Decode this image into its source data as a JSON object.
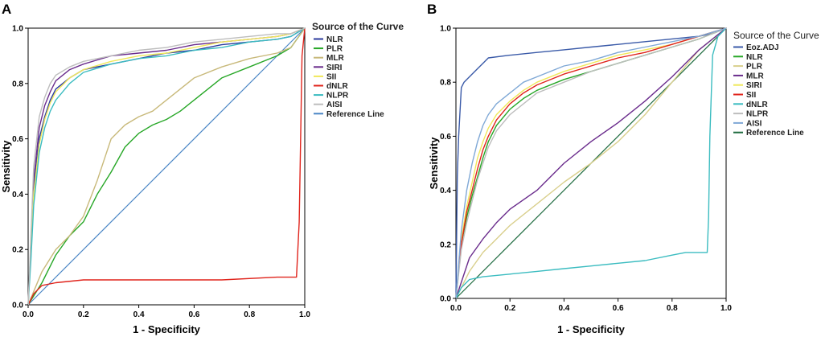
{
  "chart_data": [
    {
      "type": "line",
      "panel": "A",
      "title": "",
      "xlabel": "1 - Specificity",
      "ylabel": "Sensitivity",
      "xlim": [
        0,
        1
      ],
      "ylim": [
        0,
        1
      ],
      "xticks": [
        "0.0",
        "0.2",
        "0.4",
        "0.6",
        "0.8",
        "1.0"
      ],
      "yticks": [
        "0.0",
        "0.2",
        "0.4",
        "0.6",
        "0.8",
        "1.0"
      ],
      "legend_title": "Source of the Curve",
      "legend_position": "right",
      "series": [
        {
          "name": "NLR",
          "color": "#2b3a9e",
          "x": [
            0,
            0.01,
            0.02,
            0.04,
            0.06,
            0.08,
            0.1,
            0.15,
            0.2,
            0.3,
            0.4,
            0.5,
            0.6,
            0.7,
            0.8,
            0.9,
            0.95,
            1.0
          ],
          "y": [
            0,
            0.2,
            0.42,
            0.6,
            0.68,
            0.74,
            0.78,
            0.82,
            0.85,
            0.87,
            0.89,
            0.91,
            0.92,
            0.94,
            0.95,
            0.96,
            0.97,
            1.0
          ]
        },
        {
          "name": "PLR",
          "color": "#27a727",
          "x": [
            0,
            0.05,
            0.1,
            0.15,
            0.2,
            0.25,
            0.3,
            0.35,
            0.4,
            0.45,
            0.5,
            0.55,
            0.6,
            0.65,
            0.7,
            0.8,
            0.9,
            0.95,
            1.0
          ],
          "y": [
            0,
            0.08,
            0.18,
            0.25,
            0.3,
            0.4,
            0.48,
            0.57,
            0.62,
            0.65,
            0.67,
            0.7,
            0.74,
            0.78,
            0.82,
            0.86,
            0.9,
            0.93,
            1.0
          ]
        },
        {
          "name": "MLR",
          "color": "#c8b97a",
          "x": [
            0,
            0.05,
            0.1,
            0.15,
            0.2,
            0.25,
            0.3,
            0.35,
            0.4,
            0.45,
            0.5,
            0.55,
            0.6,
            0.7,
            0.8,
            0.9,
            0.95,
            1.0
          ],
          "y": [
            0,
            0.12,
            0.2,
            0.25,
            0.32,
            0.45,
            0.6,
            0.65,
            0.68,
            0.7,
            0.74,
            0.78,
            0.82,
            0.86,
            0.89,
            0.91,
            0.93,
            1.0
          ]
        },
        {
          "name": "SIRI",
          "color": "#6a2c8c",
          "x": [
            0,
            0.01,
            0.02,
            0.04,
            0.06,
            0.08,
            0.1,
            0.15,
            0.2,
            0.3,
            0.4,
            0.5,
            0.6,
            0.7,
            0.8,
            0.9,
            0.95,
            1.0
          ],
          "y": [
            0,
            0.22,
            0.45,
            0.64,
            0.72,
            0.77,
            0.81,
            0.85,
            0.87,
            0.9,
            0.91,
            0.92,
            0.94,
            0.95,
            0.96,
            0.97,
            0.98,
            1.0
          ]
        },
        {
          "name": "SII",
          "color": "#f0e85a",
          "x": [
            0,
            0.01,
            0.02,
            0.04,
            0.06,
            0.08,
            0.1,
            0.15,
            0.2,
            0.3,
            0.4,
            0.5,
            0.6,
            0.7,
            0.8,
            0.9,
            0.95,
            1.0
          ],
          "y": [
            0,
            0.19,
            0.4,
            0.58,
            0.67,
            0.73,
            0.77,
            0.82,
            0.85,
            0.88,
            0.9,
            0.91,
            0.93,
            0.95,
            0.96,
            0.97,
            0.98,
            1.0
          ]
        },
        {
          "name": "dNLR",
          "color": "#e0241c",
          "x": [
            0,
            0.02,
            0.05,
            0.1,
            0.2,
            0.3,
            0.5,
            0.7,
            0.9,
            0.97,
            0.98,
            0.99,
            1.0
          ],
          "y": [
            0,
            0.04,
            0.07,
            0.08,
            0.09,
            0.09,
            0.09,
            0.09,
            0.1,
            0.1,
            0.3,
            0.9,
            1.0
          ]
        },
        {
          "name": "NLPR",
          "color": "#3bbcc0",
          "x": [
            0,
            0.01,
            0.02,
            0.04,
            0.06,
            0.08,
            0.1,
            0.15,
            0.2,
            0.3,
            0.4,
            0.5,
            0.6,
            0.7,
            0.8,
            0.9,
            0.95,
            1.0
          ],
          "y": [
            0,
            0.16,
            0.36,
            0.55,
            0.64,
            0.7,
            0.74,
            0.8,
            0.84,
            0.87,
            0.89,
            0.9,
            0.92,
            0.93,
            0.95,
            0.96,
            0.97,
            1.0
          ]
        },
        {
          "name": "AISI",
          "color": "#bdbdbd",
          "x": [
            0,
            0.01,
            0.02,
            0.04,
            0.06,
            0.08,
            0.1,
            0.15,
            0.2,
            0.3,
            0.4,
            0.5,
            0.6,
            0.7,
            0.8,
            0.9,
            0.95,
            1.0
          ],
          "y": [
            0,
            0.25,
            0.5,
            0.68,
            0.75,
            0.8,
            0.83,
            0.86,
            0.88,
            0.9,
            0.92,
            0.93,
            0.95,
            0.96,
            0.97,
            0.98,
            0.98,
            1.0
          ]
        },
        {
          "name": "Reference Line",
          "color": "#4a86c5",
          "x": [
            0,
            1
          ],
          "y": [
            0,
            1
          ]
        }
      ]
    },
    {
      "type": "line",
      "panel": "B",
      "title": "",
      "xlabel": "1 - Specificity",
      "ylabel": "Sensitivity",
      "xlim": [
        0,
        1
      ],
      "ylim": [
        0,
        1
      ],
      "xticks": [
        "0.0",
        "0.2",
        "0.4",
        "0.6",
        "0.8",
        "1.0"
      ],
      "yticks": [
        "0.0",
        "0.2",
        "0.4",
        "0.6",
        "0.8",
        "1.0"
      ],
      "legend_title": "Source of the Curve",
      "legend_position": "right",
      "series": [
        {
          "name": "Eoz.ADJ",
          "color": "#3a5aa8",
          "x": [
            0,
            0.005,
            0.01,
            0.02,
            0.03,
            0.05,
            0.08,
            0.1,
            0.12,
            0.2,
            0.3,
            0.4,
            0.5,
            0.6,
            0.7,
            0.8,
            0.9,
            0.95,
            1.0
          ],
          "y": [
            0,
            0.45,
            0.6,
            0.78,
            0.8,
            0.82,
            0.85,
            0.87,
            0.89,
            0.9,
            0.91,
            0.92,
            0.93,
            0.94,
            0.95,
            0.96,
            0.97,
            0.98,
            1.0
          ]
        },
        {
          "name": "NLR",
          "color": "#27a727",
          "x": [
            0,
            0.02,
            0.04,
            0.06,
            0.08,
            0.1,
            0.12,
            0.15,
            0.2,
            0.25,
            0.3,
            0.4,
            0.5,
            0.6,
            0.7,
            0.8,
            0.9,
            1.0
          ],
          "y": [
            0,
            0.2,
            0.3,
            0.38,
            0.45,
            0.52,
            0.58,
            0.64,
            0.7,
            0.74,
            0.77,
            0.81,
            0.84,
            0.87,
            0.9,
            0.93,
            0.96,
            1.0
          ]
        },
        {
          "name": "PLR",
          "color": "#d9cf8c",
          "x": [
            0,
            0.05,
            0.1,
            0.15,
            0.2,
            0.3,
            0.4,
            0.5,
            0.6,
            0.7,
            0.8,
            0.9,
            1.0
          ],
          "y": [
            0,
            0.1,
            0.17,
            0.22,
            0.27,
            0.35,
            0.43,
            0.5,
            0.58,
            0.68,
            0.8,
            0.92,
            1.0
          ]
        },
        {
          "name": "MLR",
          "color": "#6a2c8c",
          "x": [
            0,
            0.05,
            0.1,
            0.15,
            0.2,
            0.3,
            0.4,
            0.5,
            0.6,
            0.7,
            0.8,
            0.9,
            1.0
          ],
          "y": [
            0,
            0.15,
            0.22,
            0.28,
            0.33,
            0.4,
            0.5,
            0.58,
            0.65,
            0.73,
            0.82,
            0.92,
            1.0
          ]
        },
        {
          "name": "SIRI",
          "color": "#f0e85a",
          "x": [
            0,
            0.02,
            0.04,
            0.06,
            0.08,
            0.1,
            0.12,
            0.15,
            0.2,
            0.25,
            0.3,
            0.4,
            0.5,
            0.6,
            0.7,
            0.8,
            0.9,
            1.0
          ],
          "y": [
            0,
            0.22,
            0.34,
            0.43,
            0.52,
            0.58,
            0.63,
            0.68,
            0.73,
            0.77,
            0.8,
            0.84,
            0.87,
            0.9,
            0.92,
            0.94,
            0.97,
            1.0
          ]
        },
        {
          "name": "SII",
          "color": "#e0241c",
          "x": [
            0,
            0.02,
            0.04,
            0.06,
            0.08,
            0.1,
            0.12,
            0.15,
            0.2,
            0.25,
            0.3,
            0.4,
            0.5,
            0.6,
            0.7,
            0.8,
            0.9,
            1.0
          ],
          "y": [
            0,
            0.2,
            0.32,
            0.4,
            0.48,
            0.55,
            0.6,
            0.66,
            0.72,
            0.76,
            0.79,
            0.83,
            0.86,
            0.89,
            0.91,
            0.94,
            0.97,
            1.0
          ]
        },
        {
          "name": "dNLR",
          "color": "#3bbcc0",
          "x": [
            0,
            0.02,
            0.05,
            0.1,
            0.2,
            0.3,
            0.4,
            0.5,
            0.6,
            0.7,
            0.8,
            0.85,
            0.9,
            0.93,
            0.935,
            0.94,
            0.95,
            0.97,
            1.0
          ],
          "y": [
            0,
            0.04,
            0.07,
            0.08,
            0.09,
            0.1,
            0.11,
            0.12,
            0.13,
            0.14,
            0.16,
            0.17,
            0.17,
            0.17,
            0.3,
            0.6,
            0.9,
            0.97,
            1.0
          ]
        },
        {
          "name": "NLPR",
          "color": "#bdbdbd",
          "x": [
            0,
            0.02,
            0.04,
            0.06,
            0.08,
            0.1,
            0.12,
            0.15,
            0.2,
            0.25,
            0.3,
            0.4,
            0.5,
            0.6,
            0.7,
            0.8,
            0.9,
            1.0
          ],
          "y": [
            0,
            0.18,
            0.28,
            0.36,
            0.44,
            0.5,
            0.56,
            0.62,
            0.68,
            0.72,
            0.76,
            0.8,
            0.84,
            0.87,
            0.9,
            0.93,
            0.96,
            1.0
          ]
        },
        {
          "name": "AISI",
          "color": "#7fa8d6",
          "x": [
            0,
            0.02,
            0.04,
            0.06,
            0.08,
            0.1,
            0.12,
            0.15,
            0.2,
            0.25,
            0.3,
            0.4,
            0.5,
            0.6,
            0.7,
            0.8,
            0.9,
            1.0
          ],
          "y": [
            0,
            0.25,
            0.4,
            0.5,
            0.58,
            0.64,
            0.68,
            0.72,
            0.76,
            0.8,
            0.82,
            0.86,
            0.88,
            0.91,
            0.93,
            0.95,
            0.97,
            1.0
          ]
        },
        {
          "name": "Reference Line",
          "color": "#1e6b3f",
          "x": [
            0,
            1
          ],
          "y": [
            0,
            1
          ]
        }
      ]
    }
  ]
}
